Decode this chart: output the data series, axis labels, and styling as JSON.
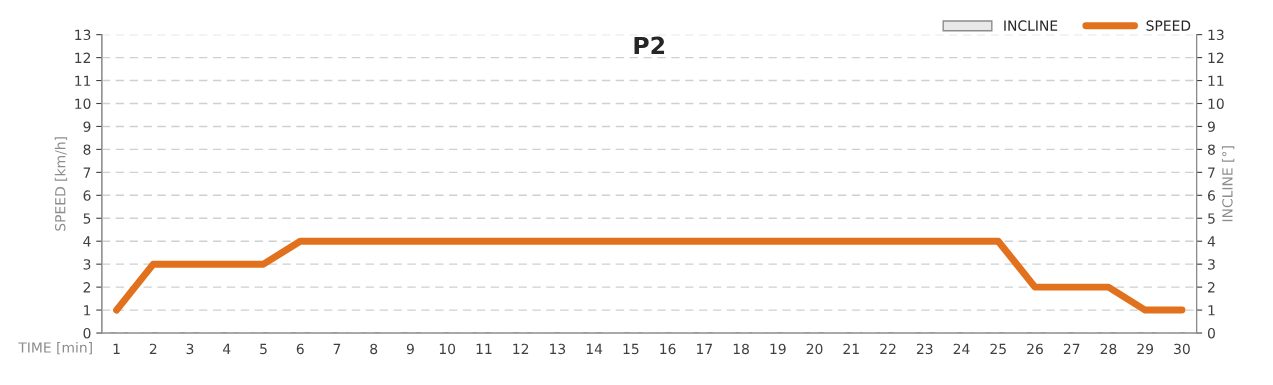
{
  "chart_data": {
    "type": "line",
    "title": "P2",
    "xlabel": "TIME [min]",
    "ylabel": "SPEED [km/h]",
    "y2label": "INCLINE [°]",
    "categories": [
      "1",
      "2",
      "3",
      "4",
      "5",
      "6",
      "7",
      "8",
      "9",
      "10",
      "11",
      "12",
      "13",
      "14",
      "15",
      "16",
      "17",
      "18",
      "19",
      "20",
      "21",
      "22",
      "23",
      "24",
      "25",
      "26",
      "27",
      "28",
      "29",
      "30"
    ],
    "series": [
      {
        "name": "INCLINE",
        "type": "bar",
        "axis": "y2",
        "color": "#e8e8e8",
        "values": [
          null,
          null,
          null,
          null,
          null,
          null,
          null,
          null,
          null,
          null,
          null,
          null,
          null,
          null,
          null,
          null,
          null,
          null,
          null,
          null,
          null,
          null,
          null,
          null,
          null,
          null,
          null,
          null,
          null,
          null
        ]
      },
      {
        "name": "SPEED",
        "color": "#e2711d",
        "values": [
          1,
          3,
          3,
          3,
          3,
          4,
          4,
          4,
          4,
          4,
          4,
          4,
          4,
          4,
          4,
          4,
          4,
          4,
          4,
          4,
          4,
          4,
          4,
          4,
          4,
          2,
          2,
          2,
          1,
          1
        ]
      }
    ],
    "ylim": [
      0,
      13
    ],
    "yticks": [
      0,
      1,
      2,
      3,
      4,
      5,
      6,
      7,
      8,
      9,
      10,
      11,
      12,
      13
    ],
    "y2lim": [
      0,
      13
    ],
    "y2ticks": [
      0,
      1,
      2,
      3,
      4,
      5,
      6,
      7,
      8,
      9,
      10,
      11,
      12,
      13
    ],
    "grid": "y",
    "legend": "top right",
    "marker": "none",
    "line_style": "solid"
  }
}
